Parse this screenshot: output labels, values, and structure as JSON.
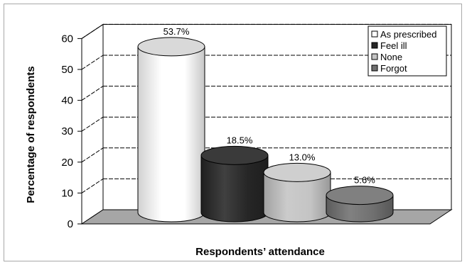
{
  "chart_data": {
    "type": "bar",
    "style": "3d-cylinder",
    "title": "",
    "xlabel": "Respondents’ attendance",
    "ylabel": "Percentage of respondents",
    "ylim": [
      0,
      60
    ],
    "yticks": [
      0,
      10,
      20,
      30,
      40,
      50,
      60
    ],
    "grid": true,
    "legend_position": "top-right",
    "series": [
      {
        "name": "As prescribed",
        "value": 53.7,
        "label": "53.7%",
        "color": "#ffffff",
        "top_color": "#d9d9d9"
      },
      {
        "name": "Feel ill",
        "value": 18.5,
        "label": "18.5%",
        "color": "#262626",
        "top_color": "#3a3a3a"
      },
      {
        "name": "None",
        "value": 13.0,
        "label": "13.0%",
        "color": "#c4c4c4",
        "top_color": "#cfcfcf"
      },
      {
        "name": "Forgot",
        "value": 5.6,
        "label": "5.6%",
        "color": "#707070",
        "top_color": "#808080"
      }
    ],
    "floor_color": "#a6a6a6",
    "gridline_color": "#000000"
  }
}
